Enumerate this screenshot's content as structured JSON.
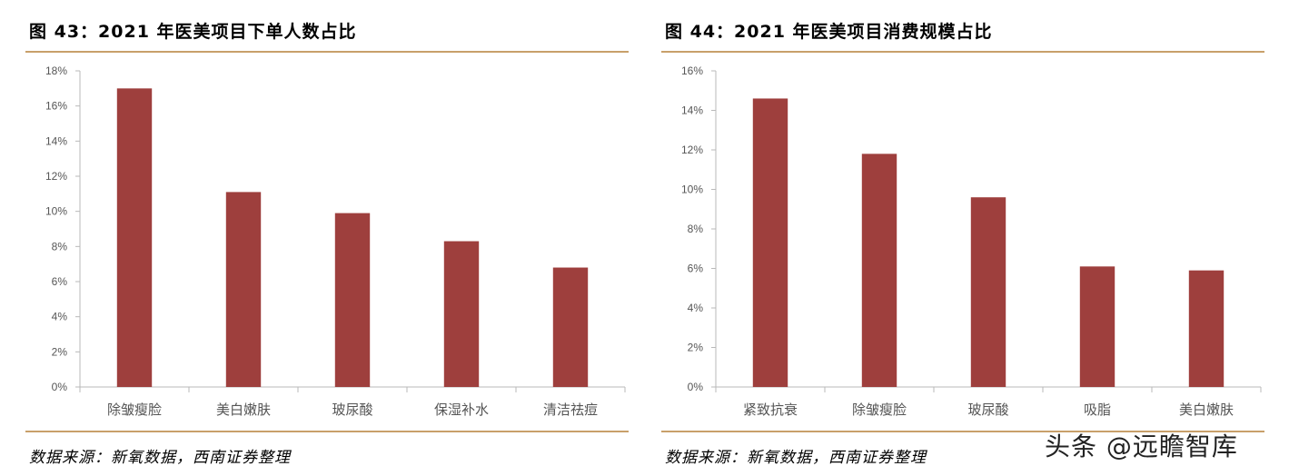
{
  "left_panel": {
    "title": "图 43：2021 年医美项目下单人数占比",
    "source": "数据来源：新氧数据，西南证券整理"
  },
  "right_panel": {
    "title": "图 44：2021 年医美项目消费规模占比",
    "source": "数据来源：新氧数据，西南证券整理"
  },
  "watermark": "头条 @远瞻智库",
  "colors": {
    "bar": "#9e3f3d",
    "axis": "#b9b9b9",
    "rule": "#c8a06a"
  },
  "chart_data": [
    {
      "type": "bar",
      "title": "图 43：2021 年医美项目下单人数占比",
      "categories": [
        "除皱瘦脸",
        "美白嫩肤",
        "玻尿酸",
        "保湿补水",
        "清洁祛痘"
      ],
      "values": [
        17.0,
        11.1,
        9.9,
        8.3,
        6.8
      ],
      "unit": "%",
      "ylim": [
        0,
        18
      ],
      "yticks": [
        "0%",
        "2%",
        "4%",
        "6%",
        "8%",
        "10%",
        "12%",
        "14%",
        "16%",
        "18%"
      ],
      "ytick_values": [
        0,
        2,
        4,
        6,
        8,
        10,
        12,
        14,
        16,
        18
      ],
      "xlabel": "",
      "ylabel": "",
      "grid": false,
      "legend": "none"
    },
    {
      "type": "bar",
      "title": "图 44：2021 年医美项目消费规模占比",
      "categories": [
        "紧致抗衰",
        "除皱瘦脸",
        "玻尿酸",
        "吸脂",
        "美白嫩肤"
      ],
      "values": [
        14.6,
        11.8,
        9.6,
        6.1,
        5.9
      ],
      "unit": "%",
      "ylim": [
        0,
        16
      ],
      "yticks": [
        "0%",
        "2%",
        "4%",
        "6%",
        "8%",
        "10%",
        "12%",
        "14%",
        "16%"
      ],
      "ytick_values": [
        0,
        2,
        4,
        6,
        8,
        10,
        12,
        14,
        16
      ],
      "xlabel": "",
      "ylabel": "",
      "grid": false,
      "legend": "none"
    }
  ]
}
